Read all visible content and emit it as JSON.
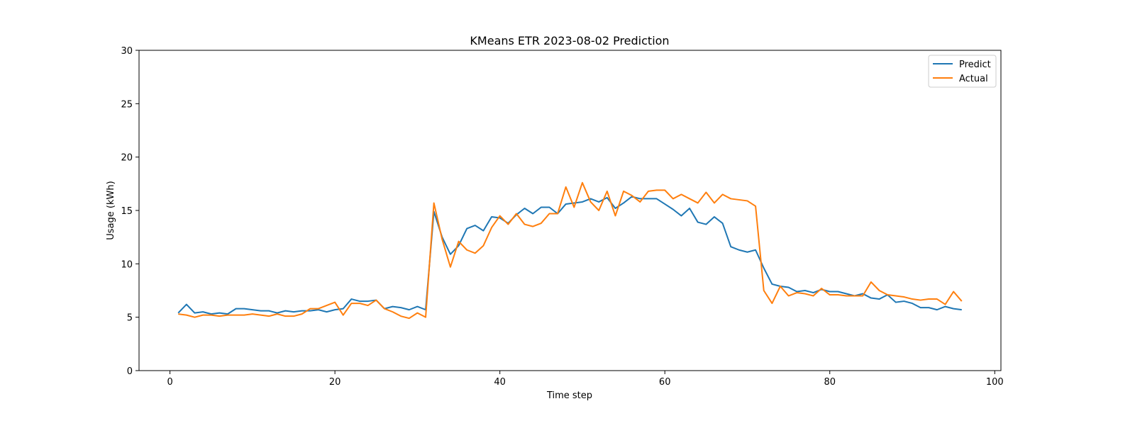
{
  "chart_data": {
    "type": "line",
    "title": "KMeans ETR 2023-08-02 Prediction",
    "xlabel": "Time step",
    "ylabel": "Usage (kWh)",
    "xlim": [
      -3.75,
      100.75
    ],
    "ylim": [
      0,
      30
    ],
    "xticks": [
      0,
      20,
      40,
      60,
      80,
      100
    ],
    "yticks": [
      0,
      5,
      10,
      15,
      20,
      25,
      30
    ],
    "grid": false,
    "legend_position": "top-right",
    "x": [
      1,
      2,
      3,
      4,
      5,
      6,
      7,
      8,
      9,
      10,
      11,
      12,
      13,
      14,
      15,
      16,
      17,
      18,
      19,
      20,
      21,
      22,
      23,
      24,
      25,
      26,
      27,
      28,
      29,
      30,
      31,
      32,
      33,
      34,
      35,
      36,
      37,
      38,
      39,
      40,
      41,
      42,
      43,
      44,
      45,
      46,
      47,
      48,
      49,
      50,
      51,
      52,
      53,
      54,
      55,
      56,
      57,
      58,
      59,
      60,
      61,
      62,
      63,
      64,
      65,
      66,
      67,
      68,
      69,
      70,
      71,
      72,
      73,
      74,
      75,
      76,
      77,
      78,
      79,
      80,
      81,
      82,
      83,
      84,
      85,
      86,
      87,
      88,
      89,
      90,
      91,
      92,
      93,
      94,
      95,
      96
    ],
    "series": [
      {
        "name": "Predict",
        "color": "#1f77b4",
        "values": [
          5.4,
          6.2,
          5.4,
          5.5,
          5.3,
          5.4,
          5.3,
          5.8,
          5.8,
          5.7,
          5.6,
          5.6,
          5.4,
          5.6,
          5.5,
          5.6,
          5.6,
          5.7,
          5.5,
          5.7,
          5.8,
          6.7,
          6.5,
          6.5,
          6.6,
          5.8,
          6.0,
          5.9,
          5.7,
          6.0,
          5.7,
          14.9,
          12.5,
          10.9,
          11.7,
          13.3,
          13.6,
          13.1,
          14.4,
          14.3,
          13.8,
          14.6,
          15.2,
          14.7,
          15.3,
          15.3,
          14.7,
          15.6,
          15.7,
          15.8,
          16.1,
          15.8,
          16.2,
          15.2,
          15.7,
          16.3,
          16.1,
          16.1,
          16.1,
          15.6,
          15.1,
          14.5,
          15.2,
          13.9,
          13.7,
          14.4,
          13.8,
          11.6,
          11.3,
          11.1,
          11.3,
          9.6,
          8.1,
          7.9,
          7.8,
          7.4,
          7.5,
          7.3,
          7.6,
          7.4,
          7.4,
          7.2,
          7.0,
          7.2,
          6.8,
          6.7,
          7.1,
          6.4,
          6.5,
          6.3,
          5.9,
          5.9,
          5.7,
          6.0,
          5.8,
          5.7
        ]
      },
      {
        "name": "Actual",
        "color": "#ff7f0e",
        "values": [
          5.3,
          5.2,
          5.0,
          5.2,
          5.2,
          5.1,
          5.2,
          5.2,
          5.2,
          5.3,
          5.2,
          5.1,
          5.3,
          5.1,
          5.1,
          5.3,
          5.8,
          5.8,
          6.1,
          6.4,
          5.2,
          6.3,
          6.3,
          6.1,
          6.6,
          5.8,
          5.5,
          5.1,
          4.9,
          5.4,
          5.0,
          15.7,
          12.3,
          9.7,
          12.1,
          11.3,
          11.0,
          11.7,
          13.4,
          14.5,
          13.7,
          14.7,
          13.7,
          13.5,
          13.8,
          14.7,
          14.7,
          17.2,
          15.3,
          17.6,
          15.8,
          15.0,
          16.8,
          14.5,
          16.8,
          16.4,
          15.8,
          16.8,
          16.9,
          16.9,
          16.1,
          16.5,
          16.1,
          15.7,
          16.7,
          15.7,
          16.5,
          16.1,
          16.0,
          15.9,
          15.4,
          7.5,
          6.3,
          7.9,
          7.0,
          7.3,
          7.2,
          7.0,
          7.7,
          7.1,
          7.1,
          7.0,
          7.0,
          7.0,
          8.3,
          7.5,
          7.1,
          7.0,
          6.9,
          6.7,
          6.6,
          6.7,
          6.7,
          6.2,
          7.4,
          6.5
        ]
      }
    ]
  }
}
